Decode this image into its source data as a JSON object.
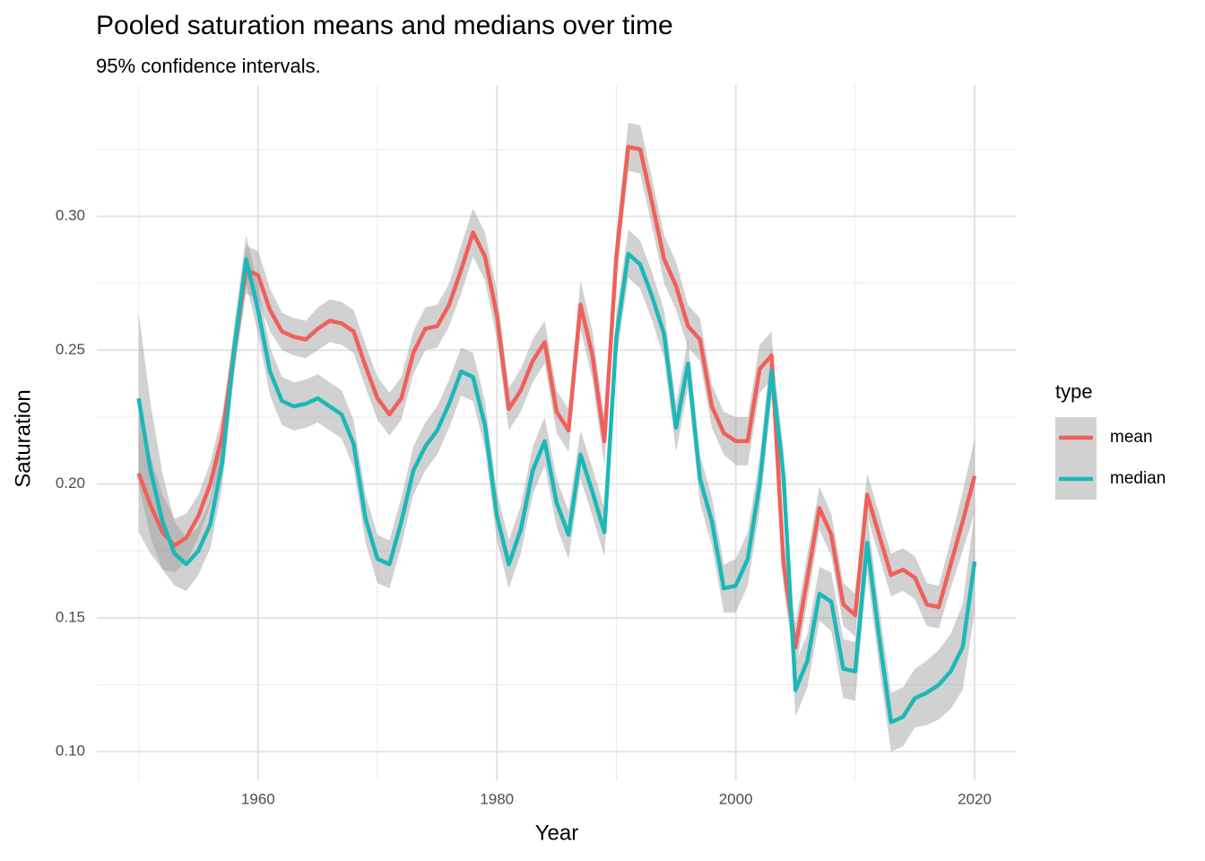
{
  "chart_data": {
    "type": "line",
    "title": "Pooled saturation means and medians over time",
    "subtitle": "95% confidence intervals.",
    "x_label": "Year",
    "y_label": "Saturation",
    "legend_title": "type",
    "ribbon_color": "#999999",
    "grid": true,
    "xlim": [
      1946.5,
      2023.45
    ],
    "ylim": [
      0.0893,
      0.349
    ],
    "xticks": [
      1960,
      1980,
      2000,
      2020
    ],
    "xminor": [
      1950,
      1970,
      1990,
      2010
    ],
    "yticks": [
      {
        "value": 0.1,
        "label": "0.10"
      },
      {
        "value": 0.15,
        "label": "0.15"
      },
      {
        "value": 0.2,
        "label": "0.20"
      },
      {
        "value": 0.25,
        "label": "0.25"
      },
      {
        "value": 0.3,
        "label": "0.30"
      }
    ],
    "yminor": [
      0.125,
      0.175,
      0.225,
      0.275,
      0.325
    ],
    "x": [
      1950,
      1951,
      1952,
      1953,
      1954,
      1955,
      1956,
      1957,
      1958,
      1959,
      1960,
      1961,
      1962,
      1963,
      1964,
      1965,
      1966,
      1967,
      1968,
      1969,
      1970,
      1971,
      1972,
      1973,
      1974,
      1975,
      1976,
      1977,
      1978,
      1979,
      1980,
      1981,
      1982,
      1983,
      1984,
      1985,
      1986,
      1987,
      1988,
      1989,
      1990,
      1991,
      1992,
      1993,
      1994,
      1995,
      1996,
      1997,
      1998,
      1999,
      2000,
      2001,
      2002,
      2003,
      2004,
      2005,
      2006,
      2007,
      2008,
      2009,
      2010,
      2011,
      2012,
      2013,
      2014,
      2015,
      2016,
      2017,
      2018,
      2019,
      2020
    ],
    "series": [
      {
        "name": "mean",
        "color": "#f0605a",
        "values": [
          0.204,
          0.192,
          0.182,
          0.177,
          0.18,
          0.188,
          0.2,
          0.218,
          0.25,
          0.28,
          0.278,
          0.265,
          0.257,
          0.255,
          0.254,
          0.258,
          0.261,
          0.26,
          0.257,
          0.244,
          0.232,
          0.226,
          0.232,
          0.249,
          0.258,
          0.259,
          0.267,
          0.28,
          0.294,
          0.285,
          0.263,
          0.228,
          0.235,
          0.246,
          0.253,
          0.227,
          0.22,
          0.267,
          0.248,
          0.216,
          0.285,
          0.326,
          0.325,
          0.305,
          0.284,
          0.274,
          0.259,
          0.254,
          0.229,
          0.219,
          0.216,
          0.216,
          0.243,
          0.248,
          0.17,
          0.139,
          0.165,
          0.191,
          0.181,
          0.155,
          0.151,
          0.196,
          0.181,
          0.166,
          0.168,
          0.165,
          0.155,
          0.154,
          0.17,
          0.186,
          0.203
        ],
        "ci": [
          0.022,
          0.018,
          0.014,
          0.01,
          0.009,
          0.008,
          0.008,
          0.008,
          0.008,
          0.009,
          0.009,
          0.008,
          0.007,
          0.007,
          0.007,
          0.008,
          0.008,
          0.008,
          0.008,
          0.008,
          0.008,
          0.008,
          0.008,
          0.008,
          0.008,
          0.008,
          0.008,
          0.009,
          0.009,
          0.009,
          0.009,
          0.008,
          0.008,
          0.008,
          0.008,
          0.008,
          0.008,
          0.009,
          0.009,
          0.009,
          0.009,
          0.009,
          0.009,
          0.009,
          0.009,
          0.009,
          0.008,
          0.008,
          0.008,
          0.008,
          0.009,
          0.009,
          0.009,
          0.009,
          0.009,
          0.009,
          0.009,
          0.008,
          0.008,
          0.008,
          0.008,
          0.008,
          0.008,
          0.008,
          0.008,
          0.008,
          0.008,
          0.008,
          0.009,
          0.011,
          0.014
        ]
      },
      {
        "name": "median",
        "color": "#1cb8b8",
        "values": [
          0.232,
          0.205,
          0.186,
          0.174,
          0.17,
          0.175,
          0.185,
          0.208,
          0.25,
          0.284,
          0.265,
          0.242,
          0.231,
          0.229,
          0.23,
          0.232,
          0.229,
          0.226,
          0.215,
          0.187,
          0.172,
          0.17,
          0.186,
          0.205,
          0.214,
          0.22,
          0.23,
          0.242,
          0.24,
          0.222,
          0.188,
          0.17,
          0.183,
          0.205,
          0.216,
          0.193,
          0.181,
          0.211,
          0.197,
          0.182,
          0.255,
          0.286,
          0.282,
          0.27,
          0.256,
          0.221,
          0.245,
          0.202,
          0.186,
          0.161,
          0.162,
          0.172,
          0.2,
          0.242,
          0.203,
          0.123,
          0.134,
          0.159,
          0.156,
          0.131,
          0.13,
          0.178,
          0.143,
          0.111,
          0.113,
          0.12,
          0.122,
          0.125,
          0.13,
          0.139,
          0.171
        ],
        "ci": [
          0.032,
          0.025,
          0.018,
          0.012,
          0.01,
          0.009,
          0.009,
          0.009,
          0.009,
          0.009,
          0.009,
          0.009,
          0.009,
          0.009,
          0.009,
          0.009,
          0.009,
          0.009,
          0.009,
          0.009,
          0.009,
          0.009,
          0.009,
          0.009,
          0.009,
          0.009,
          0.009,
          0.009,
          0.009,
          0.009,
          0.009,
          0.009,
          0.009,
          0.009,
          0.009,
          0.009,
          0.009,
          0.009,
          0.009,
          0.009,
          0.009,
          0.009,
          0.009,
          0.009,
          0.009,
          0.009,
          0.009,
          0.009,
          0.009,
          0.009,
          0.01,
          0.01,
          0.01,
          0.01,
          0.01,
          0.01,
          0.01,
          0.01,
          0.011,
          0.011,
          0.011,
          0.011,
          0.011,
          0.011,
          0.011,
          0.011,
          0.012,
          0.013,
          0.014,
          0.016,
          0.019
        ]
      }
    ]
  }
}
